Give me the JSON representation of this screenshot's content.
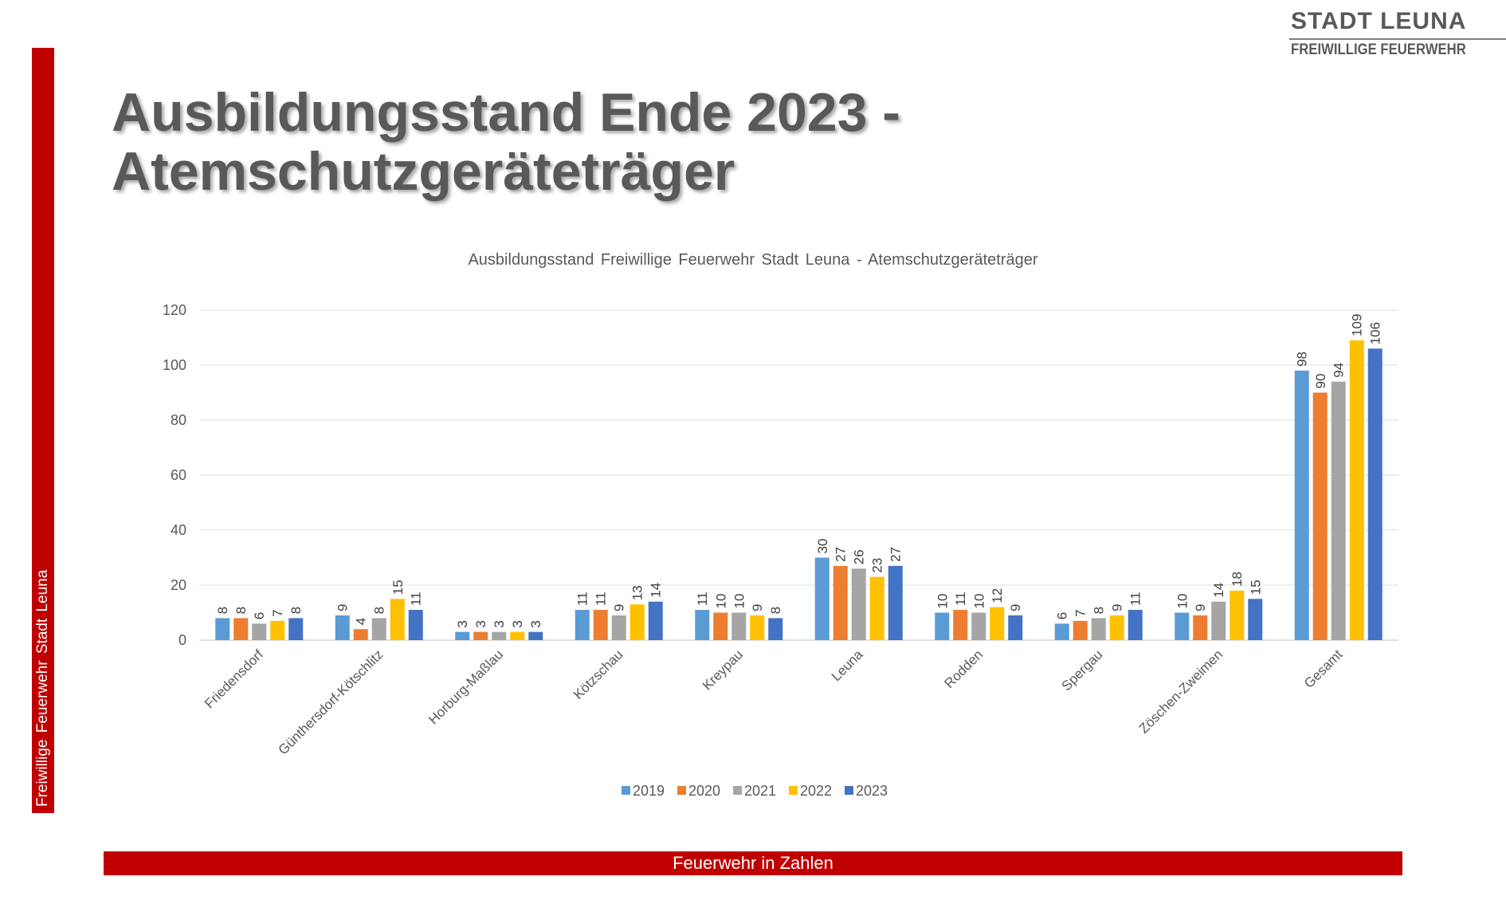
{
  "brand": {
    "name": "STADT LEUNA",
    "subtitle": "FREIWILLIGE FEUERWEHR"
  },
  "sidebar": {
    "text": "Freiwillige Feuerwehr Stadt Leuna"
  },
  "slide": {
    "title_line1": "Ausbildungsstand Ende 2023 -",
    "title_line2": "Atemschutzgeräteträger",
    "footer": "Feuerwehr in Zahlen"
  },
  "colors": {
    "accent_red": "#c00000"
  },
  "chart_data": {
    "type": "bar",
    "title": "Ausbildungsstand Freiwillige Feuerwehr Stadt Leuna - Atemschutzgeräteträger",
    "xlabel": "",
    "ylabel": "",
    "ylim": [
      0,
      120
    ],
    "yticks": [
      0,
      20,
      40,
      60,
      80,
      100,
      120
    ],
    "grid": true,
    "legend_position": "bottom",
    "categories": [
      "Friedensdorf",
      "Günthersdorf-Kötschlitz",
      "Horburg-Maßlau",
      "Kötzschau",
      "Kreypau",
      "Leuna",
      "Rodden",
      "Spergau",
      "Zöschen-Zweimen",
      "Gesamt"
    ],
    "series": [
      {
        "name": "2019",
        "color": "#5B9BD5",
        "values": [
          8,
          9,
          3,
          11,
          11,
          30,
          10,
          6,
          10,
          98
        ]
      },
      {
        "name": "2020",
        "color": "#ED7D31",
        "values": [
          8,
          4,
          3,
          11,
          10,
          27,
          11,
          7,
          9,
          90
        ]
      },
      {
        "name": "2021",
        "color": "#A5A5A5",
        "values": [
          6,
          8,
          3,
          9,
          10,
          26,
          10,
          8,
          14,
          94
        ]
      },
      {
        "name": "2022",
        "color": "#FFC000",
        "values": [
          7,
          15,
          3,
          13,
          9,
          23,
          12,
          9,
          18,
          109
        ]
      },
      {
        "name": "2023",
        "color": "#4472C4",
        "values": [
          8,
          11,
          3,
          14,
          8,
          27,
          9,
          11,
          15,
          106
        ]
      }
    ]
  }
}
